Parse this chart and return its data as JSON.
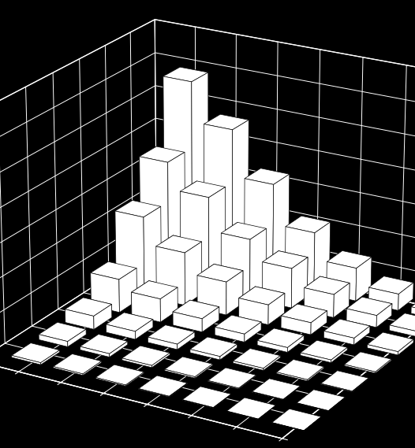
{
  "background_color": "#000000",
  "bar_color": "#ffffff",
  "edge_color": "#000000",
  "grid_color": "#ffffff",
  "n_rows": 7,
  "n_cols": 7,
  "values": [
    [
      30,
      20,
      15,
      10,
      8,
      5,
      3
    ],
    [
      80,
      50,
      30,
      20,
      12,
      8,
      5
    ],
    [
      200,
      120,
      80,
      50,
      30,
      20,
      10
    ],
    [
      500,
      350,
      200,
      120,
      70,
      40,
      20
    ],
    [
      1200,
      800,
      500,
      300,
      180,
      100,
      50
    ],
    [
      1800,
      1400,
      900,
      600,
      350,
      180,
      80
    ],
    [
      2800,
      2200,
      1500,
      900,
      500,
      250,
      100
    ]
  ],
  "elev": 22,
  "azim": -60,
  "bar_width": 0.7,
  "bar_depth": 0.7,
  "zmax": 3500,
  "figsize": [
    5.26,
    5.69
  ],
  "dpi": 100
}
